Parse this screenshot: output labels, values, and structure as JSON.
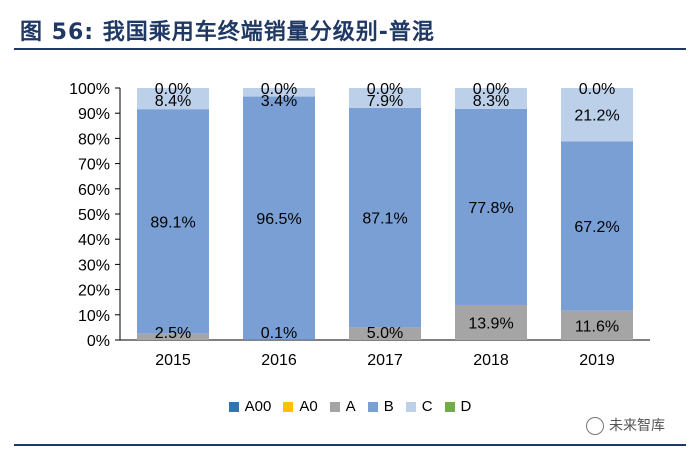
{
  "figure_title": "图 56: 我国乘用车终端销量分级别-普混",
  "watermark": "未来智库",
  "chart_data": {
    "type": "bar",
    "stacked": true,
    "categories": [
      "2015",
      "2016",
      "2017",
      "2018",
      "2019"
    ],
    "ylim": [
      0,
      100
    ],
    "yticks": [
      "0%",
      "10%",
      "20%",
      "30%",
      "40%",
      "50%",
      "60%",
      "70%",
      "80%",
      "90%",
      "100%"
    ],
    "series": [
      {
        "name": "A00",
        "color": "#2e75b6",
        "values": [
          0,
          0,
          0,
          0,
          0
        ],
        "labels": [
          "",
          "",
          "",
          "",
          ""
        ]
      },
      {
        "name": "A0",
        "color": "#ffc000",
        "values": [
          0,
          0,
          0,
          0,
          0
        ],
        "labels": [
          "",
          "",
          "",
          "",
          ""
        ]
      },
      {
        "name": "A",
        "color": "#a5a5a5",
        "values": [
          2.5,
          0.1,
          5.0,
          13.9,
          11.6
        ],
        "labels": [
          "2.5%",
          "0.1%",
          "5.0%",
          "13.9%",
          "11.6%"
        ]
      },
      {
        "name": "B",
        "color": "#7a9fd4",
        "values": [
          89.1,
          96.5,
          87.1,
          77.8,
          67.2
        ],
        "labels": [
          "89.1%",
          "96.5%",
          "87.1%",
          "77.8%",
          "67.2%"
        ]
      },
      {
        "name": "C",
        "color": "#bdd0ea",
        "values": [
          8.4,
          3.4,
          7.9,
          8.3,
          21.2
        ],
        "labels": [
          "8.4%",
          "3.4%",
          "7.9%",
          "8.3%",
          "21.2%"
        ]
      },
      {
        "name": "D",
        "color": "#70ad47",
        "values": [
          0,
          0,
          0,
          0,
          0
        ],
        "labels": [
          "0.0%",
          "0.0%",
          "0.0%",
          "0.0%",
          "0.0%"
        ]
      }
    ],
    "legend_position": "bottom",
    "grid": false
  }
}
